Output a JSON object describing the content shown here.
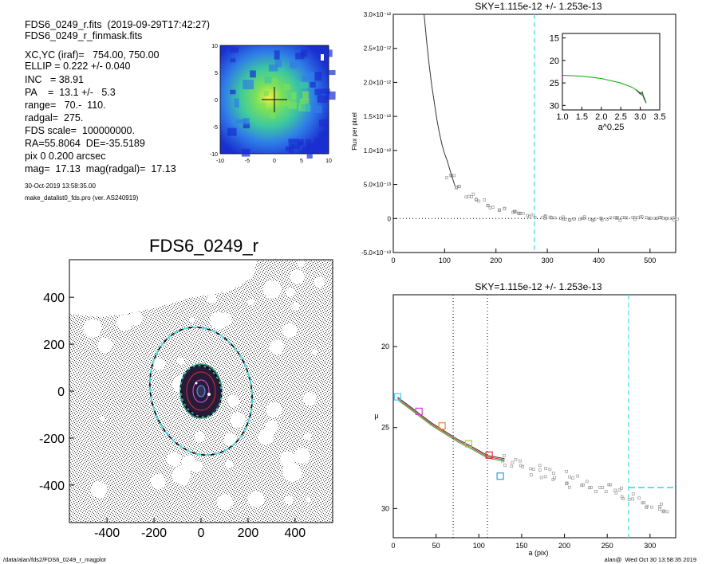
{
  "info": {
    "file": "FDS6_0249_r.fits  (2019-09-29T17:42:27)",
    "mask": "FDS6_0249_r_finmask.fits",
    "xcyc": "XC,YC (iraf)=   754.00, 750.00",
    "ellip": "ELLIP = 0.222 +/- 0.040",
    "inc": "INC   = 38.91",
    "pa": "PA    =  13.1 +/-   5.3",
    "range": "range=   70.-  110.",
    "radgal": "radgal=  275.",
    "fds_scale": "FDS scale=  100000000.",
    "radec": "RA=55.8064  DE=-35.5189",
    "pix": "pix 0 0.200 arcsec",
    "mag": "mag=  17.13  mag(radgal)=  17.13",
    "date": "30-Oct-2019 13:58:35.00",
    "program": "make_datalist0_fds.pro (ver. AS240919)"
  },
  "footer": {
    "path": "/data/alan/fds2/FDS6_0249_r_magplot",
    "stamp": "alan@  Wed Oct 30 13:58:35 2019"
  },
  "colors": {
    "sky_line": "#44ddee",
    "profile_curve": "#00aa00",
    "data_points": "#888888"
  },
  "chart_data": [
    {
      "id": "thumbnail",
      "type": "heatmap",
      "title": "",
      "xlim": [
        -10,
        10
      ],
      "ylim": [
        -10,
        10
      ],
      "xticks": [
        "-10",
        "-5",
        "0",
        "5",
        "10"
      ],
      "yticks": [
        "10",
        "5",
        "0",
        "-5",
        "-10"
      ],
      "colormap": "rainbow",
      "note_values": "galaxy intensity map, high at center (green/yellow), low at edges (blue)"
    },
    {
      "id": "image",
      "type": "scatter",
      "title": "FDS6_0249_r",
      "xlim": [
        -560,
        560
      ],
      "ylim": [
        -560,
        560
      ],
      "xticks": [
        "-400",
        "-200",
        "0",
        "200",
        "400"
      ],
      "yticks": [
        "400",
        "200",
        "0",
        "-200",
        "-400"
      ],
      "ellipse_outer": {
        "a": 275,
        "ellip": 0.222,
        "pa": 13.1
      },
      "ellipse_inner": {
        "a": 110,
        "ellip": 0.222,
        "pa": 13.1
      }
    },
    {
      "id": "flux",
      "type": "line",
      "title": "SKY=1.115e-12 +/- 1.253e-13",
      "xlabel": "",
      "ylabel": "Flux per pixel",
      "xlim": [
        0,
        550
      ],
      "ylim": [
        -5e-13,
        3e-12
      ],
      "xticks": [
        "0",
        "100",
        "200",
        "300",
        "400",
        "500"
      ],
      "yticks": [
        "-5.0×10⁻¹³",
        "0",
        "5.0×10⁻¹³",
        "1.0×10⁻¹²",
        "1.5×10⁻¹²",
        "2.0×10⁻¹²",
        "2.5×10⁻¹²",
        "3.0×10⁻¹²"
      ],
      "sky_radius": 275,
      "series": [
        {
          "x": [
            60,
            65,
            70,
            75,
            80,
            85,
            90,
            95,
            100,
            105,
            110,
            115,
            120
          ],
          "y": [
            3e-12,
            2.6e-12,
            2.25e-12,
            1.95e-12,
            1.7e-12,
            1.45e-12,
            1.25e-12,
            1.08e-12,
            9.5e-13,
            8.5e-13,
            7.2e-13,
            6e-13,
            4.8e-13
          ]
        }
      ],
      "points": {
        "x": [
          110,
          130,
          150,
          170,
          190,
          210,
          230,
          250,
          270,
          290,
          310,
          330,
          350,
          370,
          390,
          410,
          430,
          450,
          470,
          490,
          510,
          530,
          545
        ],
        "y": [
          6.2e-13,
          4.7e-13,
          3.4e-13,
          2.6e-13,
          1.8e-13,
          1.3e-13,
          9e-14,
          6e-14,
          4e-14,
          2e-14,
          1e-14,
          0.0,
          -1e-14,
          5e-15,
          -5e-15,
          0.0,
          5e-15,
          -1e-14,
          0.0,
          1e-14,
          -5e-15,
          0.0,
          -1e-14
        ]
      },
      "inset": {
        "xlabel": "a^0.25",
        "xlim": [
          1.0,
          3.5
        ],
        "ylim": [
          31,
          14
        ],
        "xticks": [
          "1.0",
          "1.5",
          "2.0",
          "2.5",
          "3.0",
          "3.5"
        ],
        "yticks": [
          "15",
          "20",
          "25",
          "30"
        ],
        "curve": {
          "x": [
            1.0,
            1.5,
            2.0,
            2.5,
            2.8,
            3.0,
            3.1,
            3.15
          ],
          "y": [
            23.3,
            23.5,
            24.0,
            25.0,
            26.0,
            27.2,
            28.2,
            29.5
          ]
        }
      }
    },
    {
      "id": "sb",
      "type": "line",
      "title": "SKY=1.115e-12 +/- 1.253e-13",
      "xlabel": "a (pix)",
      "ylabel": "μ",
      "xlim": [
        0,
        330
      ],
      "ylim": [
        31.8,
        16.8
      ],
      "xticks": [
        "0",
        "50",
        "100",
        "150",
        "200",
        "250",
        "300"
      ],
      "yticks": [
        "20",
        "25",
        "30"
      ],
      "vlines_dotted": [
        70,
        110
      ],
      "sky_radius": 275,
      "sky_level": 28.7,
      "series": [
        {
          "x": [
            5,
            20,
            30,
            45,
            60,
            75,
            90,
            100,
            110,
            120,
            130
          ],
          "y": [
            23.2,
            23.8,
            24.2,
            24.8,
            25.3,
            25.8,
            26.2,
            26.5,
            26.8,
            26.9,
            27.0
          ]
        }
      ],
      "points": {
        "x": [
          130,
          140,
          150,
          160,
          170,
          180,
          190,
          200,
          210,
          220,
          230,
          240,
          250,
          260,
          270,
          280,
          290,
          300,
          310,
          320
        ],
        "y": [
          27.1,
          27.3,
          27.4,
          27.6,
          27.7,
          27.9,
          28.0,
          28.1,
          28.3,
          28.3,
          28.5,
          28.6,
          28.8,
          28.9,
          29.0,
          29.4,
          29.7,
          29.6,
          29.9,
          30.5
        ]
      },
      "squares": {
        "x": [
          5,
          30,
          57,
          88,
          112,
          125
        ],
        "y": [
          23.1,
          24.0,
          24.9,
          26.0,
          26.7,
          28.0
        ]
      }
    }
  ]
}
